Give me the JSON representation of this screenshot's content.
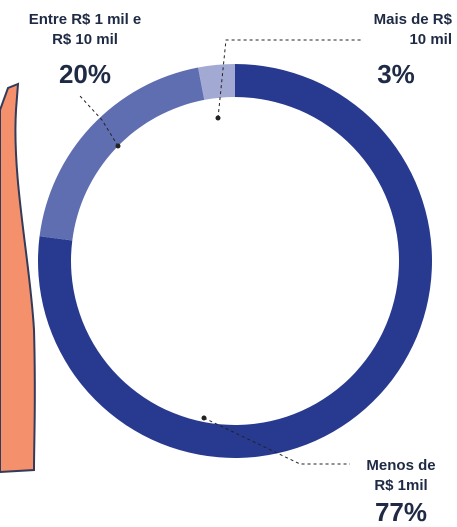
{
  "chart_data": {
    "type": "donut",
    "categories": [
      "Menos de R$ 1mil",
      "Entre R$ 1 mil e R$ 10 mil",
      "Mais de R$ 10 mil"
    ],
    "values": [
      77,
      20,
      3
    ],
    "value_labels": [
      "77%",
      "20%",
      "3%"
    ],
    "colors": [
      "#283a8f",
      "#5f6eb0",
      "#a2a9d3"
    ]
  }
}
